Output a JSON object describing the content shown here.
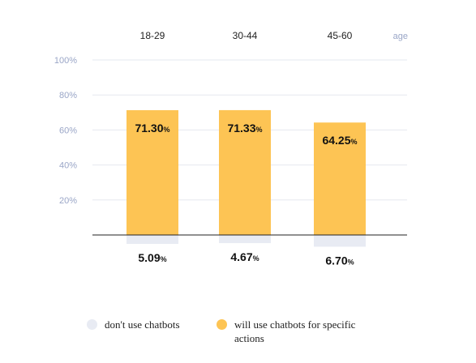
{
  "colors": {
    "primary_bar": "#fdc454",
    "secondary_bar": "#e8ebf3",
    "gridline": "#e6e8ef",
    "baseline": "#222222",
    "tick_text": "#9aa6c7"
  },
  "chart_data": {
    "type": "bar",
    "categories": [
      "18-29",
      "30-44",
      "45-60"
    ],
    "xlabel": "age",
    "ylim": [
      0,
      100
    ],
    "yticks": [
      "20%",
      "40%",
      "60%",
      "80%",
      "100%"
    ],
    "grid": true,
    "legend_position": "bottom",
    "series": [
      {
        "name": "will use chatbots for specific actions",
        "values": [
          71.3,
          71.33,
          64.25
        ],
        "labels": [
          "71.30",
          "71.33",
          "64.25"
        ],
        "direction": "up"
      },
      {
        "name": "don't use chatbots",
        "values": [
          5.09,
          4.67,
          6.7
        ],
        "labels": [
          "5.09",
          "4.67",
          "6.70"
        ],
        "direction": "down"
      }
    ],
    "unit_label": "%"
  },
  "legend": {
    "items": [
      {
        "label": "don't use chatbots",
        "color": "#e8ebf3"
      },
      {
        "label": "will use chatbots for specific actions",
        "color": "#fdc454"
      }
    ]
  }
}
